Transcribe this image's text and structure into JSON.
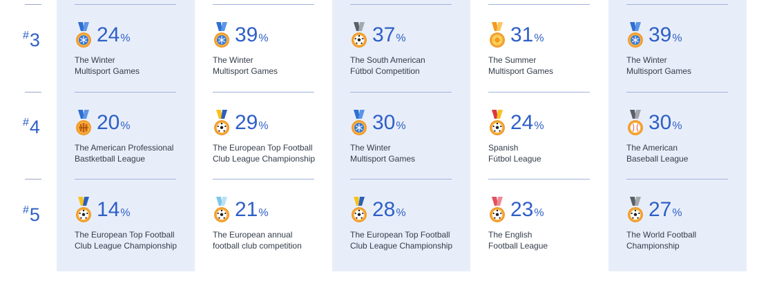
{
  "percent_sign": "%",
  "hash_symbol": "#",
  "colors": {
    "accent": "#2e5fc7",
    "shaded_column": "#e8eef9",
    "label_text": "#333c4a"
  },
  "rows": [
    {
      "rank": "3",
      "cells": [
        {
          "value": "24",
          "icon": "snowflake-medal-icon",
          "ribbon": "blue",
          "line1": "The Winter",
          "line2": "Multisport Games"
        },
        {
          "value": "39",
          "icon": "snowflake-medal-icon",
          "ribbon": "blue",
          "line1": "The Winter",
          "line2": "Multisport Games"
        },
        {
          "value": "37",
          "icon": "soccer-ball-medal-icon",
          "ribbon": "gray",
          "line1": "The South American",
          "line2": "Fútbol Competition"
        },
        {
          "value": "31",
          "icon": "sun-medal-icon",
          "ribbon": "orange",
          "line1": "The Summer",
          "line2": "Multisport Games"
        },
        {
          "value": "39",
          "icon": "snowflake-medal-icon",
          "ribbon": "blue",
          "line1": "The Winter",
          "line2": "Multisport Games"
        }
      ]
    },
    {
      "rank": "4",
      "cells": [
        {
          "value": "20",
          "icon": "basketball-medal-icon",
          "ribbon": "blue",
          "line1": "The American Professional",
          "line2": "Bastketball League"
        },
        {
          "value": "29",
          "icon": "soccer-ball-medal-icon",
          "ribbon": "yellow-blue",
          "line1": "The European Top Football",
          "line2": "Club League Championship"
        },
        {
          "value": "30",
          "icon": "snowflake-medal-icon",
          "ribbon": "blue",
          "line1": "The Winter",
          "line2": "Multisport Games"
        },
        {
          "value": "24",
          "icon": "soccer-ball-medal-icon",
          "ribbon": "red-yellow",
          "line1": "Spanish",
          "line2": "Fútbol League"
        },
        {
          "value": "30",
          "icon": "baseball-medal-icon",
          "ribbon": "gray",
          "line1": "The American",
          "line2": "Baseball League"
        }
      ]
    },
    {
      "rank": "5",
      "cells": [
        {
          "value": "14",
          "icon": "soccer-ball-medal-icon",
          "ribbon": "yellow-blue",
          "line1": "The European Top Football",
          "line2": "Club League Championship"
        },
        {
          "value": "21",
          "icon": "soccer-ball-medal-icon",
          "ribbon": "light-blue",
          "line1": "The European annual",
          "line2": "football club competition"
        },
        {
          "value": "28",
          "icon": "soccer-ball-medal-icon",
          "ribbon": "yellow-blue",
          "line1": "The European Top Football",
          "line2": "Club League Championship"
        },
        {
          "value": "23",
          "icon": "soccer-ball-medal-icon",
          "ribbon": "red",
          "line1": "The English",
          "line2": "Football League"
        },
        {
          "value": "27",
          "icon": "soccer-ball-medal-icon",
          "ribbon": "gray",
          "line1": "The World Football",
          "line2": "Championship"
        }
      ]
    }
  ]
}
